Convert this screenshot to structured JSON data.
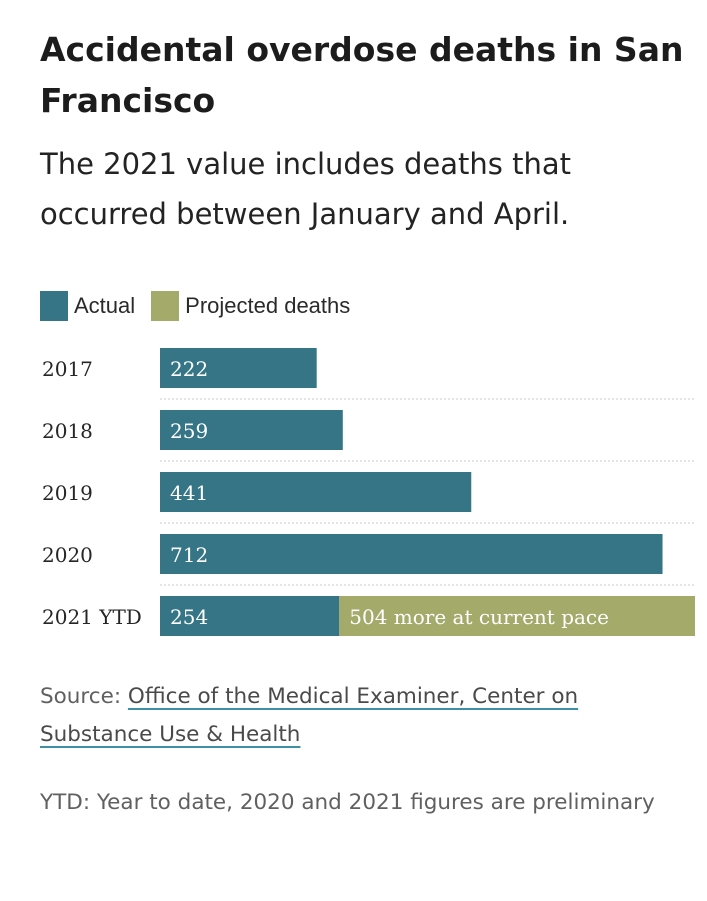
{
  "chart_data": {
    "type": "bar",
    "stacked": true,
    "orientation": "horizontal",
    "title": "Accidental overdose deaths in San Francisco",
    "subtitle": "The 2021 value includes deaths that occurred between January and April.",
    "categories": [
      "2017",
      "2018",
      "2019",
      "2020",
      "2021 YTD"
    ],
    "series": [
      {
        "name": "Actual",
        "color": "#357585",
        "values": [
          222,
          259,
          441,
          712,
          254
        ],
        "labels": [
          "222",
          "259",
          "441",
          "712",
          "254"
        ]
      },
      {
        "name": "Projected deaths",
        "color": "#a3aa6a",
        "values": [
          0,
          0,
          0,
          0,
          504
        ],
        "labels": [
          "",
          "",
          "",
          "",
          "504 more at current pace"
        ]
      }
    ],
    "xlim": [
      0,
      758
    ],
    "legend_position": "top-left",
    "grid": false
  },
  "source": {
    "prefix": "Source: ",
    "link_text": "Office of the Medical Examiner, Center on Substance Use & Health"
  },
  "note": "YTD: Year to date, 2020 and 2021 figures are preliminary"
}
